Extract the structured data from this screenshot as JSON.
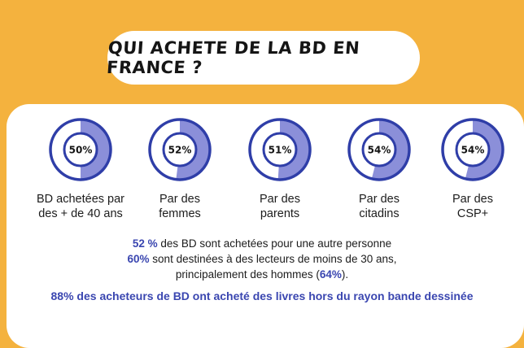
{
  "title": "QUI ACHETE DE LA BD EN FRANCE ?",
  "chart_data": {
    "type": "pie",
    "categories": [
      "BD achetées par des + de 40 ans",
      "Par des femmes",
      "Par des parents",
      "Par des citadins",
      "Par des CSP+"
    ],
    "values": [
      50,
      52,
      51,
      54,
      54
    ],
    "value_labels": [
      "50%",
      "52%",
      "51%",
      "54%",
      "54%"
    ],
    "label_lines": [
      [
        "BD achetées par",
        "des + de 40 ans"
      ],
      [
        "Par des",
        "femmes"
      ],
      [
        "Par des",
        "parents"
      ],
      [
        "Par des",
        "citadins"
      ],
      [
        "Par des",
        "CSP+"
      ]
    ],
    "colors": {
      "filled": "#8b8fd9",
      "empty": "#ffffff",
      "outline": "#2f3ea8"
    }
  },
  "stats": {
    "line1_value": "52 %",
    "line1_text": " des BD sont achetées pour une autre personne",
    "line2_value": "60%",
    "line2_text": " sont destinées à des lecteurs de moins de 30 ans,",
    "line3_text_before": "principalement des hommes (",
    "line3_value": "64%",
    "line3_text_after": ")."
  },
  "bottom_line": "88% des acheteurs de BD ont acheté des livres hors du rayon bande dessinée",
  "colors": {
    "background": "#f4b23e",
    "panel": "#ffffff",
    "accent": "#3a46b0"
  }
}
